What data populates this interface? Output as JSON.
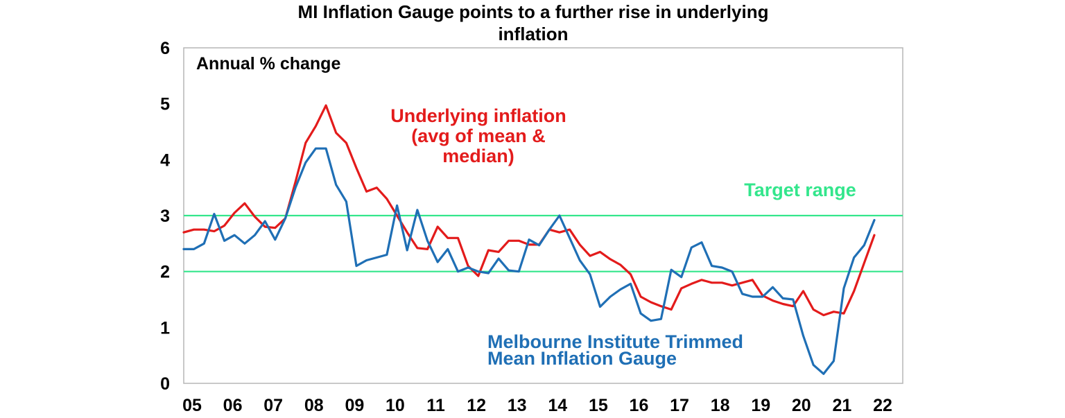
{
  "chart_data": {
    "type": "line",
    "title_lines": [
      "MI Inflation Gauge points to a further rise in underlying",
      "inflation"
    ],
    "ylabel": "Annual % change",
    "ylim": [
      0,
      6
    ],
    "yticks": [
      "0",
      "1",
      "2",
      "3",
      "4",
      "5",
      "6"
    ],
    "xlim": [
      2005,
      2022.7
    ],
    "xtick_labels": [
      "05",
      "06",
      "07",
      "08",
      "09",
      "10",
      "11",
      "12",
      "13",
      "14",
      "15",
      "16",
      "17",
      "18",
      "19",
      "20",
      "21",
      "22"
    ],
    "grid": false,
    "target_range": {
      "label": "Target range",
      "lower": 2,
      "upper": 3,
      "color": "#33e68c"
    },
    "series": [
      {
        "name": "Underlying inflation (avg of mean & median)",
        "label_lines": [
          "Underlying inflation",
          "(avg of mean &",
          "median)"
        ],
        "color": "#e31b1b",
        "points": [
          [
            2005.0,
            2.7
          ],
          [
            2005.25,
            2.75
          ],
          [
            2005.5,
            2.75
          ],
          [
            2005.75,
            2.72
          ],
          [
            2006.0,
            2.82
          ],
          [
            2006.25,
            3.05
          ],
          [
            2006.5,
            3.22
          ],
          [
            2006.75,
            2.98
          ],
          [
            2007.0,
            2.8
          ],
          [
            2007.25,
            2.78
          ],
          [
            2007.5,
            2.95
          ],
          [
            2007.75,
            3.6
          ],
          [
            2008.0,
            4.3
          ],
          [
            2008.25,
            4.6
          ],
          [
            2008.5,
            4.97
          ],
          [
            2008.75,
            4.48
          ],
          [
            2009.0,
            4.3
          ],
          [
            2009.25,
            3.85
          ],
          [
            2009.5,
            3.43
          ],
          [
            2009.75,
            3.5
          ],
          [
            2010.0,
            3.3
          ],
          [
            2010.25,
            3.0
          ],
          [
            2010.5,
            2.7
          ],
          [
            2010.75,
            2.42
          ],
          [
            2011.0,
            2.4
          ],
          [
            2011.25,
            2.8
          ],
          [
            2011.5,
            2.6
          ],
          [
            2011.75,
            2.6
          ],
          [
            2012.0,
            2.1
          ],
          [
            2012.25,
            1.92
          ],
          [
            2012.5,
            2.38
          ],
          [
            2012.75,
            2.35
          ],
          [
            2013.0,
            2.55
          ],
          [
            2013.25,
            2.55
          ],
          [
            2013.5,
            2.48
          ],
          [
            2013.75,
            2.48
          ],
          [
            2014.0,
            2.75
          ],
          [
            2014.25,
            2.7
          ],
          [
            2014.5,
            2.75
          ],
          [
            2014.75,
            2.48
          ],
          [
            2015.0,
            2.28
          ],
          [
            2015.25,
            2.35
          ],
          [
            2015.5,
            2.22
          ],
          [
            2015.75,
            2.12
          ],
          [
            2016.0,
            1.95
          ],
          [
            2016.25,
            1.55
          ],
          [
            2016.5,
            1.45
          ],
          [
            2016.75,
            1.38
          ],
          [
            2017.0,
            1.32
          ],
          [
            2017.25,
            1.7
          ],
          [
            2017.5,
            1.78
          ],
          [
            2017.75,
            1.85
          ],
          [
            2018.0,
            1.8
          ],
          [
            2018.25,
            1.8
          ],
          [
            2018.5,
            1.75
          ],
          [
            2018.75,
            1.8
          ],
          [
            2019.0,
            1.85
          ],
          [
            2019.25,
            1.57
          ],
          [
            2019.5,
            1.48
          ],
          [
            2019.75,
            1.42
          ],
          [
            2020.0,
            1.38
          ],
          [
            2020.25,
            1.65
          ],
          [
            2020.5,
            1.32
          ],
          [
            2020.75,
            1.22
          ],
          [
            2021.0,
            1.28
          ],
          [
            2021.25,
            1.25
          ],
          [
            2021.5,
            1.65
          ],
          [
            2021.75,
            2.15
          ],
          [
            2022.0,
            2.65
          ]
        ]
      },
      {
        "name": "Melbourne Institute Trimmed Mean Inflation Gauge",
        "label_lines": [
          "Melbourne Institute Trimmed",
          "Mean Inflation Gauge"
        ],
        "color": "#1f6fb5",
        "points": [
          [
            2005.0,
            2.4
          ],
          [
            2005.25,
            2.4
          ],
          [
            2005.5,
            2.5
          ],
          [
            2005.75,
            3.03
          ],
          [
            2006.0,
            2.55
          ],
          [
            2006.25,
            2.65
          ],
          [
            2006.5,
            2.5
          ],
          [
            2006.75,
            2.65
          ],
          [
            2007.0,
            2.9
          ],
          [
            2007.25,
            2.57
          ],
          [
            2007.5,
            2.95
          ],
          [
            2007.75,
            3.5
          ],
          [
            2008.0,
            3.95
          ],
          [
            2008.25,
            4.2
          ],
          [
            2008.5,
            4.2
          ],
          [
            2008.75,
            3.55
          ],
          [
            2009.0,
            3.25
          ],
          [
            2009.25,
            2.1
          ],
          [
            2009.5,
            2.2
          ],
          [
            2009.75,
            2.25
          ],
          [
            2010.0,
            2.3
          ],
          [
            2010.25,
            3.18
          ],
          [
            2010.5,
            2.38
          ],
          [
            2010.75,
            3.1
          ],
          [
            2011.0,
            2.55
          ],
          [
            2011.25,
            2.17
          ],
          [
            2011.5,
            2.4
          ],
          [
            2011.75,
            2.0
          ],
          [
            2012.0,
            2.07
          ],
          [
            2012.25,
            2.0
          ],
          [
            2012.5,
            1.97
          ],
          [
            2012.75,
            2.23
          ],
          [
            2013.0,
            2.02
          ],
          [
            2013.25,
            2.0
          ],
          [
            2013.5,
            2.57
          ],
          [
            2013.75,
            2.47
          ],
          [
            2014.0,
            2.75
          ],
          [
            2014.25,
            3.0
          ],
          [
            2014.5,
            2.6
          ],
          [
            2014.75,
            2.2
          ],
          [
            2015.0,
            1.95
          ],
          [
            2015.25,
            1.37
          ],
          [
            2015.5,
            1.55
          ],
          [
            2015.75,
            1.68
          ],
          [
            2016.0,
            1.78
          ],
          [
            2016.25,
            1.25
          ],
          [
            2016.5,
            1.12
          ],
          [
            2016.75,
            1.15
          ],
          [
            2017.0,
            2.03
          ],
          [
            2017.25,
            1.9
          ],
          [
            2017.5,
            2.43
          ],
          [
            2017.75,
            2.52
          ],
          [
            2018.0,
            2.1
          ],
          [
            2018.25,
            2.07
          ],
          [
            2018.5,
            2.0
          ],
          [
            2018.75,
            1.6
          ],
          [
            2019.0,
            1.55
          ],
          [
            2019.25,
            1.55
          ],
          [
            2019.5,
            1.72
          ],
          [
            2019.75,
            1.52
          ],
          [
            2020.0,
            1.5
          ],
          [
            2020.25,
            0.85
          ],
          [
            2020.5,
            0.33
          ],
          [
            2020.75,
            0.17
          ],
          [
            2021.0,
            0.4
          ],
          [
            2021.25,
            1.7
          ],
          [
            2021.5,
            2.25
          ],
          [
            2021.75,
            2.47
          ],
          [
            2022.0,
            2.92
          ]
        ]
      }
    ]
  }
}
